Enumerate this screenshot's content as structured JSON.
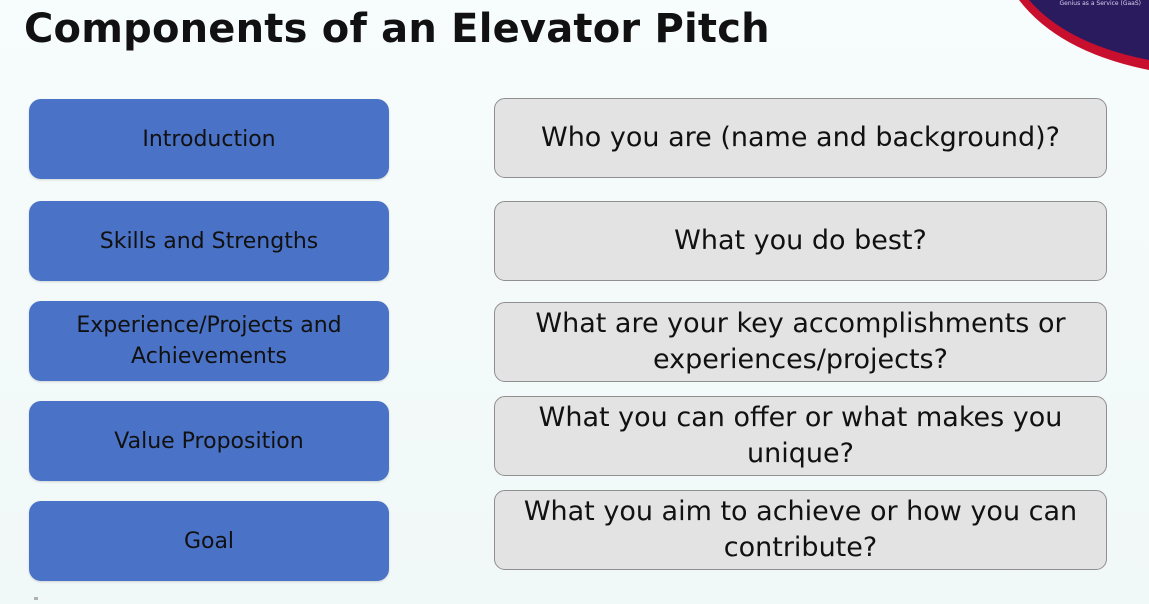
{
  "slide": {
    "title": "Components of an Elevator Pitch",
    "corner_text": "Genius as a Service (GaaS)"
  },
  "components": [
    {
      "label": "Introduction",
      "question": "Who you are (name and background)?"
    },
    {
      "label": "Skills and Strengths",
      "question": "What you do best?"
    },
    {
      "label": "Experience/Projects and Achievements",
      "question": "What are your key accomplishments or experiences/projects?"
    },
    {
      "label": "Value Proposition",
      "question": "What you can offer or what makes you unique?"
    },
    {
      "label": "Goal",
      "question": "What you aim to achieve or how you can contribute?"
    }
  ],
  "colors": {
    "component_fill": "#4a72c6",
    "question_fill": "#e3e3e3",
    "question_border": "#8f8f8f",
    "corner_red": "#c8102e",
    "corner_navy": "#2a1a5e"
  }
}
